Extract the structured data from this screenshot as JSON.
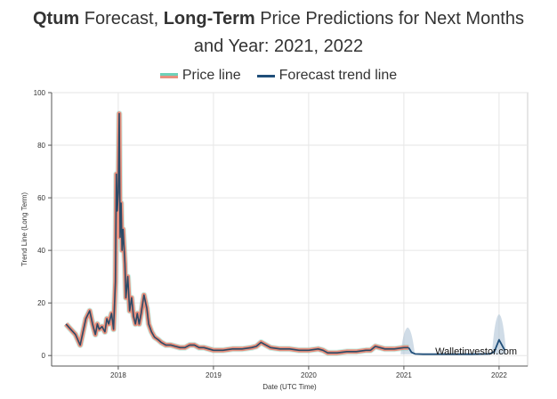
{
  "header": {
    "title_bold_1": "Qtum",
    "title_part_1": " Forecast, ",
    "title_bold_2": "Long-Term",
    "title_part_2": " Price Predictions for Next Months",
    "title_line_2": "and Year: 2021, 2022"
  },
  "watermark": "Walletinvestor.com",
  "colors": {
    "price_fill": "#e8907e",
    "price_outline": "#6fd1b8",
    "trend_line": "#2c4a66",
    "forecast_line": "#1f4e79",
    "forecast_band": "#a9bfd3"
  },
  "chart_data": {
    "type": "line",
    "xlabel": "Date (UTC Time)",
    "ylabel": "Trend Line (Long Term)",
    "xlim": [
      2017.3,
      2022.3
    ],
    "ylim": [
      -4,
      100
    ],
    "x_ticks": [
      2018,
      2019,
      2020,
      2021,
      2022
    ],
    "y_ticks": [
      0,
      20,
      40,
      60,
      80,
      100
    ],
    "grid": true,
    "legend": "top-center",
    "series": [
      {
        "name": "Price line",
        "x": [
          2017.45,
          2017.5,
          2017.55,
          2017.6,
          2017.63,
          2017.66,
          2017.7,
          2017.73,
          2017.76,
          2017.78,
          2017.8,
          2017.83,
          2017.86,
          2017.88,
          2017.9,
          2017.93,
          2017.95,
          2017.97,
          2017.98,
          2017.99,
          2018.0,
          2018.01,
          2018.02,
          2018.03,
          2018.04,
          2018.05,
          2018.07,
          2018.08,
          2018.1,
          2018.12,
          2018.14,
          2018.16,
          2018.18,
          2018.2,
          2018.22,
          2018.24,
          2018.27,
          2018.3,
          2018.32,
          2018.35,
          2018.38,
          2018.42,
          2018.45,
          2018.5,
          2018.55,
          2018.6,
          2018.65,
          2018.7,
          2018.75,
          2018.8,
          2018.85,
          2018.9,
          2018.95,
          2019.0,
          2019.1,
          2019.2,
          2019.3,
          2019.4,
          2019.45,
          2019.5,
          2019.55,
          2019.6,
          2019.7,
          2019.8,
          2019.9,
          2020.0,
          2020.1,
          2020.15,
          2020.2,
          2020.3,
          2020.4,
          2020.5,
          2020.6,
          2020.65,
          2020.7,
          2020.8,
          2020.9,
          2021.0,
          2021.05
        ],
        "values": [
          12,
          10,
          8,
          4,
          9,
          14,
          17,
          12,
          8,
          12,
          10,
          11,
          9,
          14,
          12,
          16,
          10,
          28,
          69,
          55,
          62,
          92,
          45,
          58,
          40,
          48,
          35,
          22,
          30,
          17,
          22,
          15,
          12,
          16,
          12,
          16,
          23,
          18,
          12,
          9,
          7,
          6,
          5,
          4,
          4,
          3.5,
          3,
          3,
          4,
          4,
          3,
          3,
          2.5,
          2,
          2,
          2.5,
          2.5,
          3,
          3.5,
          5,
          4,
          3,
          2.5,
          2.5,
          2,
          2,
          2.5,
          2,
          1,
          1,
          1.5,
          1.5,
          2,
          2,
          3.5,
          2.5,
          2.5,
          3,
          3
        ]
      },
      {
        "name": "Forecast trend line",
        "x": [
          2021.05,
          2021.08,
          2021.12,
          2021.2,
          2021.3,
          2021.5,
          2021.7,
          2021.9,
          2021.95,
          2022.0,
          2022.03,
          2022.06
        ],
        "values": [
          3,
          1.2,
          0.6,
          0.5,
          0.5,
          0.5,
          0.5,
          0.6,
          1.5,
          6,
          4,
          2
        ]
      }
    ]
  }
}
